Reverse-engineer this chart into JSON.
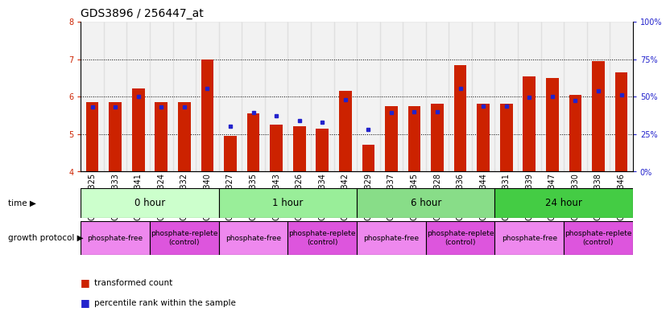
{
  "title": "GDS3896 / 256447_at",
  "samples": [
    "GSM618325",
    "GSM618333",
    "GSM618341",
    "GSM618324",
    "GSM618332",
    "GSM618340",
    "GSM618327",
    "GSM618335",
    "GSM618343",
    "GSM618326",
    "GSM618334",
    "GSM618342",
    "GSM618329",
    "GSM618337",
    "GSM618345",
    "GSM618328",
    "GSM618336",
    "GSM618344",
    "GSM618331",
    "GSM618339",
    "GSM618347",
    "GSM618330",
    "GSM618338",
    "GSM618346"
  ],
  "red_values": [
    5.85,
    5.85,
    6.22,
    5.85,
    5.85,
    7.0,
    4.95,
    5.55,
    5.25,
    5.2,
    5.15,
    6.15,
    4.72,
    5.75,
    5.75,
    5.82,
    6.85,
    5.82,
    5.82,
    6.55,
    6.5,
    6.05,
    6.95,
    6.65
  ],
  "blue_values": [
    5.72,
    5.72,
    6.0,
    5.72,
    5.72,
    6.22,
    5.2,
    5.58,
    5.48,
    5.35,
    5.32,
    5.92,
    5.12,
    5.58,
    5.6,
    5.6,
    6.22,
    5.75,
    5.75,
    5.98,
    6.0,
    5.9,
    6.15,
    6.05
  ],
  "time_groups": [
    {
      "label": "0 hour",
      "start": 0,
      "end": 6,
      "color": "#ccffcc"
    },
    {
      "label": "1 hour",
      "start": 6,
      "end": 12,
      "color": "#99ee99"
    },
    {
      "label": "6 hour",
      "start": 12,
      "end": 18,
      "color": "#88dd88"
    },
    {
      "label": "24 hour",
      "start": 18,
      "end": 24,
      "color": "#44cc44"
    }
  ],
  "protocol_groups": [
    {
      "label": "phosphate-free",
      "start": 0,
      "end": 3,
      "color": "#ee88ee"
    },
    {
      "label": "phosphate-replete\n(control)",
      "start": 3,
      "end": 6,
      "color": "#dd55dd"
    },
    {
      "label": "phosphate-free",
      "start": 6,
      "end": 9,
      "color": "#ee88ee"
    },
    {
      "label": "phosphate-replete\n(control)",
      "start": 9,
      "end": 12,
      "color": "#dd55dd"
    },
    {
      "label": "phosphate-free",
      "start": 12,
      "end": 15,
      "color": "#ee88ee"
    },
    {
      "label": "phosphate-replete\n(control)",
      "start": 15,
      "end": 18,
      "color": "#dd55dd"
    },
    {
      "label": "phosphate-free",
      "start": 18,
      "end": 21,
      "color": "#ee88ee"
    },
    {
      "label": "phosphate-replete\n(control)",
      "start": 21,
      "end": 24,
      "color": "#dd55dd"
    }
  ],
  "ylim": [
    4,
    8
  ],
  "yticks": [
    4,
    5,
    6,
    7,
    8
  ],
  "y2lim": [
    0,
    100
  ],
  "y2ticks": [
    0,
    25,
    50,
    75,
    100
  ],
  "bar_color": "#cc2200",
  "dot_color": "#2222cc",
  "grid_color": "#000000",
  "label_bg_color": "#cccccc",
  "title_fontsize": 10,
  "tick_fontsize": 7,
  "bar_width": 0.55
}
